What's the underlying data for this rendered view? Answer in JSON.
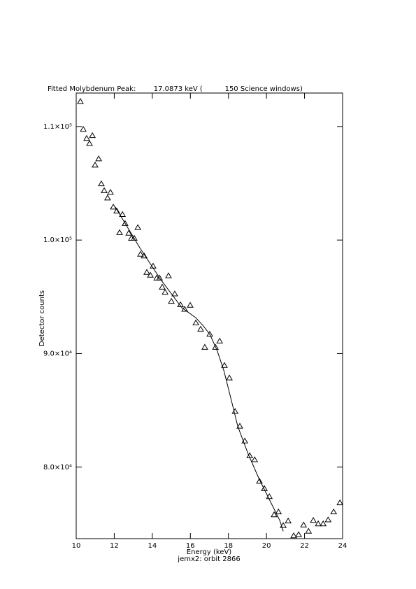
{
  "chart_data": {
    "type": "scatter",
    "title": "Fitted Molybdenum Peak:        17.0873 keV (          150 Science windows)",
    "x_label": "Energy (keV)",
    "subtitle": "jemx2: orbit 2866",
    "y_label": "Detector counts",
    "xlim": [
      10,
      24
    ],
    "xticks": [
      10,
      12,
      14,
      16,
      18,
      20,
      22,
      24
    ],
    "ylim": [
      73700,
      112950
    ],
    "yticks": [
      {
        "value": 80000,
        "label": "8.0×10⁴"
      },
      {
        "value": 90000,
        "label": "9.0×10⁴"
      },
      {
        "value": 100000,
        "label": "1.0×10⁵"
      },
      {
        "value": 110000,
        "label": "1.1×10⁵"
      }
    ],
    "grid": false,
    "series": [
      {
        "marker": "triangle",
        "color": "#000000",
        "x": [
          10.22,
          10.37,
          10.55,
          10.7,
          10.85,
          10.99,
          11.18,
          11.32,
          11.47,
          11.65,
          11.8,
          11.95,
          12.13,
          12.28,
          12.43,
          12.57,
          12.76,
          12.9,
          13.05,
          13.24,
          13.38,
          13.57,
          13.71,
          13.9,
          14.04,
          14.23,
          14.38,
          14.52,
          14.67,
          14.85,
          15.0,
          15.18,
          15.48,
          15.7,
          15.99,
          16.29,
          16.54,
          16.76,
          17.02,
          17.32,
          17.54,
          17.79,
          18.05,
          18.35,
          18.6,
          18.86,
          19.12,
          19.38,
          19.63,
          19.89,
          20.15,
          20.4,
          20.63,
          20.88,
          21.14,
          21.43,
          21.69,
          21.95,
          22.21,
          22.46,
          22.72,
          22.98,
          23.24,
          23.53,
          23.86
        ],
        "values": [
          112200,
          109750,
          108950,
          108500,
          109200,
          106600,
          107150,
          104950,
          104350,
          103700,
          104200,
          102900,
          102550,
          100650,
          102250,
          101450,
          100600,
          100150,
          100150,
          101100,
          98750,
          98600,
          97150,
          96900,
          97700,
          96650,
          96650,
          95850,
          95400,
          96850,
          94600,
          95250,
          94300,
          93900,
          94250,
          92700,
          92150,
          90550,
          91700,
          90550,
          91100,
          88950,
          87850,
          84900,
          83600,
          82300,
          81000,
          80650,
          78750,
          78100,
          77400,
          75800,
          76050,
          74850,
          75250,
          73950,
          74050,
          74900,
          74350,
          75300,
          75000,
          75000,
          75350,
          76050,
          76850
        ]
      },
      {
        "marker": "line",
        "color": "#000000",
        "x": [
          12.06,
          13.35,
          14.45,
          15.55,
          16.29,
          16.65,
          17.02,
          17.39,
          17.76,
          18.13,
          18.49,
          19.04,
          19.6,
          20.15,
          20.7,
          20.88
        ],
        "values": [
          102900,
          99300,
          96500,
          94050,
          93150,
          92500,
          91700,
          90350,
          88500,
          86050,
          83600,
          81150,
          79000,
          77150,
          75300,
          74350
        ]
      }
    ]
  }
}
